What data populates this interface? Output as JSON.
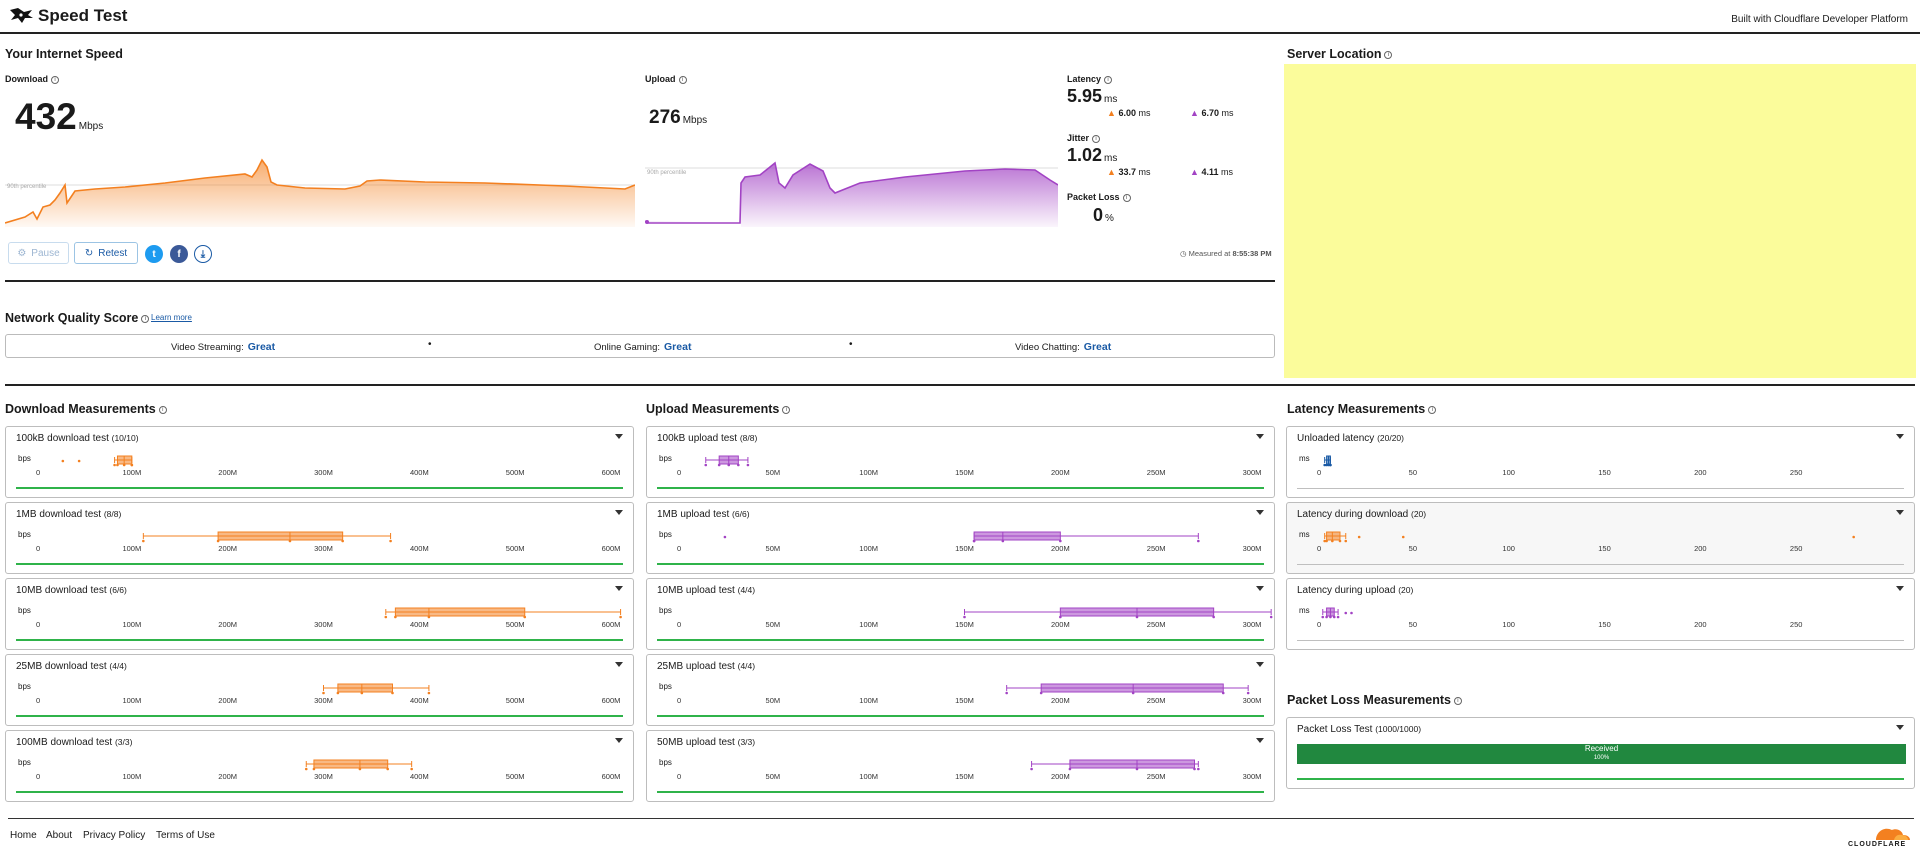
{
  "header": {
    "title": "Speed Test",
    "built_with": "Built with Cloudflare Developer Platform"
  },
  "colors": {
    "download": "#f38020",
    "upload": "#a243c4",
    "green": "#2fb34a",
    "blue": "#1a5aa5",
    "map": "#fbfc9b"
  },
  "speed": {
    "section_title": "Your Internet Speed",
    "download": {
      "label": "Download",
      "value": "432",
      "unit": "Mbps",
      "percentile_label": "90th percentile"
    },
    "upload": {
      "label": "Upload",
      "value": "276",
      "unit": "Mbps",
      "percentile_label": "90th percentile"
    },
    "latency": {
      "label": "Latency",
      "value": "5.95",
      "unit": "ms",
      "down": "6.00",
      "up": "6.70",
      "sub_unit": "ms"
    },
    "jitter": {
      "label": "Jitter",
      "value": "1.02",
      "unit": "ms",
      "down": "33.7",
      "up": "4.11",
      "sub_unit": "ms"
    },
    "packet_loss": {
      "label": "Packet Loss",
      "value": "0",
      "unit": "%"
    },
    "buttons": {
      "pause": "Pause",
      "retest": "Retest"
    },
    "measured_prefix": "Measured at",
    "measured_time": "8:55:38 PM"
  },
  "network_quality": {
    "title": "Network Quality Score",
    "learn_more": "Learn more",
    "items": [
      {
        "label": "Video Streaming:",
        "value": "Great"
      },
      {
        "label": "Online Gaming:",
        "value": "Great"
      },
      {
        "label": "Video Chatting:",
        "value": "Great"
      }
    ]
  },
  "server": {
    "title": "Server Location"
  },
  "download_measurements": {
    "title": "Download Measurements",
    "unit": "bps",
    "ticks": [
      "0",
      "100M",
      "200M",
      "300M",
      "400M",
      "500M",
      "600M"
    ],
    "tests": [
      {
        "name": "100kB download test",
        "count": "(10/10)",
        "q1": 85,
        "med": 92,
        "q3": 100,
        "min": 82,
        "max": 100,
        "outliers": [
          28,
          45
        ]
      },
      {
        "name": "1MB download test",
        "count": "(8/8)",
        "q1": 190,
        "med": 265,
        "q3": 320,
        "min": 112,
        "max": 370,
        "outliers": []
      },
      {
        "name": "10MB download test",
        "count": "(6/6)",
        "q1": 375,
        "med": 410,
        "q3": 510,
        "min": 365,
        "max": 610,
        "outliers": []
      },
      {
        "name": "25MB download test",
        "count": "(4/4)",
        "q1": 315,
        "med": 340,
        "q3": 372,
        "min": 300,
        "max": 410,
        "outliers": []
      },
      {
        "name": "100MB download test",
        "count": "(3/3)",
        "q1": 290,
        "med": 338,
        "q3": 367,
        "min": 282,
        "max": 392,
        "outliers": []
      }
    ]
  },
  "upload_measurements": {
    "title": "Upload Measurements",
    "unit": "bps",
    "ticks": [
      "0",
      "50M",
      "100M",
      "150M",
      "200M",
      "250M",
      "300M"
    ],
    "tests": [
      {
        "name": "100kB upload test",
        "count": "(8/8)",
        "q1": 22,
        "med": 27,
        "q3": 32,
        "min": 15,
        "max": 37,
        "outliers": []
      },
      {
        "name": "1MB upload test",
        "count": "(6/6)",
        "q1": 155,
        "med": 170,
        "q3": 200,
        "min": 155,
        "max": 272,
        "outliers": [
          25
        ]
      },
      {
        "name": "10MB upload test",
        "count": "(4/4)",
        "q1": 200,
        "med": 240,
        "q3": 280,
        "min": 150,
        "max": 310,
        "outliers": []
      },
      {
        "name": "25MB upload test",
        "count": "(4/4)",
        "q1": 190,
        "med": 238,
        "q3": 285,
        "min": 172,
        "max": 298,
        "outliers": []
      },
      {
        "name": "50MB upload test",
        "count": "(3/3)",
        "q1": 205,
        "med": 240,
        "q3": 270,
        "min": 185,
        "max": 272,
        "outliers": []
      }
    ]
  },
  "latency_measurements": {
    "title": "Latency Measurements",
    "unit": "ms",
    "ticks": [
      "0",
      "50",
      "100",
      "150",
      "200",
      "250"
    ],
    "tests": [
      {
        "name": "Unloaded latency",
        "count": "(20/20)",
        "q1": 5,
        "med": 6,
        "q3": 7,
        "min": 4,
        "max": 7,
        "outliers": [],
        "color": "#1a5aa5"
      },
      {
        "name": "Latency during download",
        "count": "(20)",
        "q1": 5,
        "med": 8,
        "q3": 12,
        "min": 4,
        "max": 15,
        "outliers": [
          22,
          45,
          280
        ],
        "color": "#f38020"
      },
      {
        "name": "Latency during upload",
        "count": "(20)",
        "q1": 5,
        "med": 7,
        "q3": 9,
        "min": 3,
        "max": 11,
        "outliers": [
          15,
          18
        ],
        "color": "#a243c4"
      }
    ]
  },
  "packet_loss_measurements": {
    "title": "Packet Loss Measurements",
    "test_name": "Packet Loss Test",
    "test_count": "(1000/1000)",
    "received_label": "Received",
    "received_pct": "100%",
    "received_fraction": 1.0
  },
  "footer": {
    "links": [
      "Home",
      "About",
      "Privacy Policy",
      "Terms of Use"
    ],
    "logo_text": "CLOUDFLARE"
  }
}
